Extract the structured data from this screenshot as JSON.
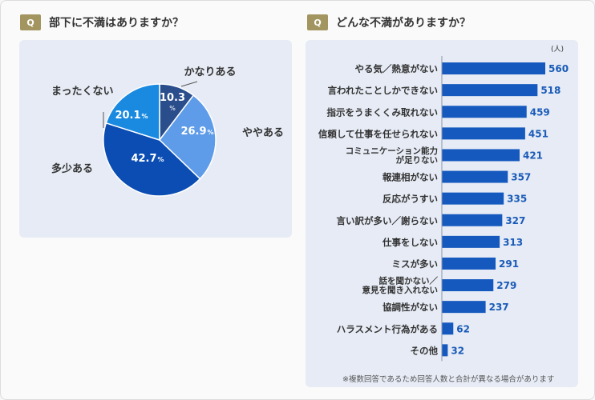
{
  "left": {
    "badge": "Q",
    "question": "部下に不満はありますか？"
  },
  "right": {
    "badge": "Q",
    "question": "どんな不満がありますか？",
    "unit": "(人)",
    "note": "※複数回答であるため回答人数と合計が異なる場合があります"
  },
  "colors": {
    "badge": "#a39560",
    "panel": "#e6ebf5",
    "bar": "#1559bf",
    "value_text": "#1a5bb8"
  },
  "chart_data": [
    {
      "type": "pie",
      "title": "部下に不満はありますか？",
      "slices": [
        {
          "label": "かなりある",
          "value": 10.3,
          "color": "#2a4d8c"
        },
        {
          "label": "ややある",
          "value": 26.9,
          "color": "#5e9be8"
        },
        {
          "label": "多少ある",
          "value": 42.7,
          "color": "#0b4db3"
        },
        {
          "label": "まったくない",
          "value": 20.1,
          "color": "#1a8ae0"
        }
      ],
      "value_suffix": "%"
    },
    {
      "type": "bar",
      "orientation": "horizontal",
      "title": "どんな不満がありますか？",
      "unit": "(人)",
      "categories": [
        [
          "やる気／熱意がない"
        ],
        [
          "言われたことしかできない"
        ],
        [
          "指示をうまくくみ取れない"
        ],
        [
          "信頼して仕事を任せられない"
        ],
        [
          "コミュニケーション能力",
          "が足りない"
        ],
        [
          "報連相がない"
        ],
        [
          "反応がうすい"
        ],
        [
          "言い訳が多い／謝らない"
        ],
        [
          "仕事をしない"
        ],
        [
          "ミスが多い"
        ],
        [
          "話を聞かない／",
          "意見を聞き入れない"
        ],
        [
          "協調性がない"
        ],
        [
          "ハラスメント行為がある"
        ],
        [
          "その他"
        ]
      ],
      "values": [
        560,
        518,
        459,
        451,
        421,
        357,
        335,
        327,
        313,
        291,
        279,
        237,
        62,
        32
      ]
    }
  ]
}
